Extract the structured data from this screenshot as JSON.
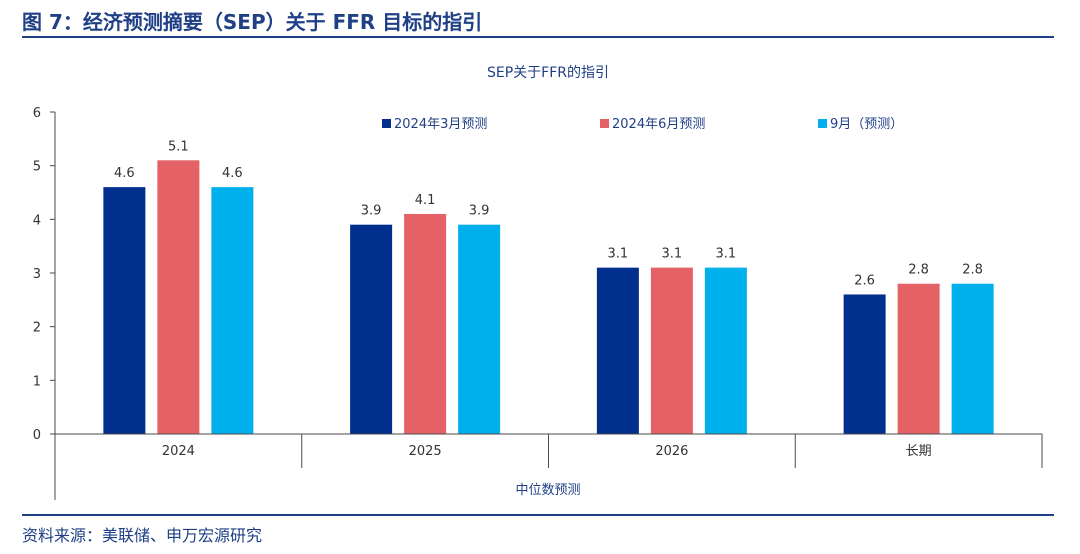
{
  "figure": {
    "title": "图 7：经济预测摘要（SEP）关于 FFR 目标的指引",
    "source": "资料来源：美联储、申万宏源研究"
  },
  "chart_data": {
    "type": "bar",
    "title": "SEP关于FFR的指引",
    "xlabel": "中位数预测",
    "ylabel": "",
    "ylim": [
      0,
      6
    ],
    "yticks": [
      "0",
      "1",
      "2",
      "3",
      "4",
      "5",
      "6"
    ],
    "categories": [
      "2024",
      "2025",
      "2026",
      "长期"
    ],
    "legend_position": "top",
    "grid": false,
    "series": [
      {
        "name": "2024年3月预测",
        "color": "#002f8e",
        "values": [
          4.6,
          3.9,
          3.1,
          2.6
        ],
        "labels": [
          "4.6",
          "3.9",
          "3.1",
          "2.6"
        ]
      },
      {
        "name": "2024年6月预测",
        "color": "#e46265",
        "values": [
          5.1,
          4.1,
          3.1,
          2.8
        ],
        "labels": [
          "5.1",
          "4.1",
          "3.1",
          "2.8"
        ]
      },
      {
        "name": "9月（预测）",
        "color": "#00b0ec",
        "values": [
          4.6,
          3.9,
          3.1,
          2.8
        ],
        "labels": [
          "4.6",
          "3.9",
          "3.1",
          "2.8"
        ]
      }
    ]
  }
}
